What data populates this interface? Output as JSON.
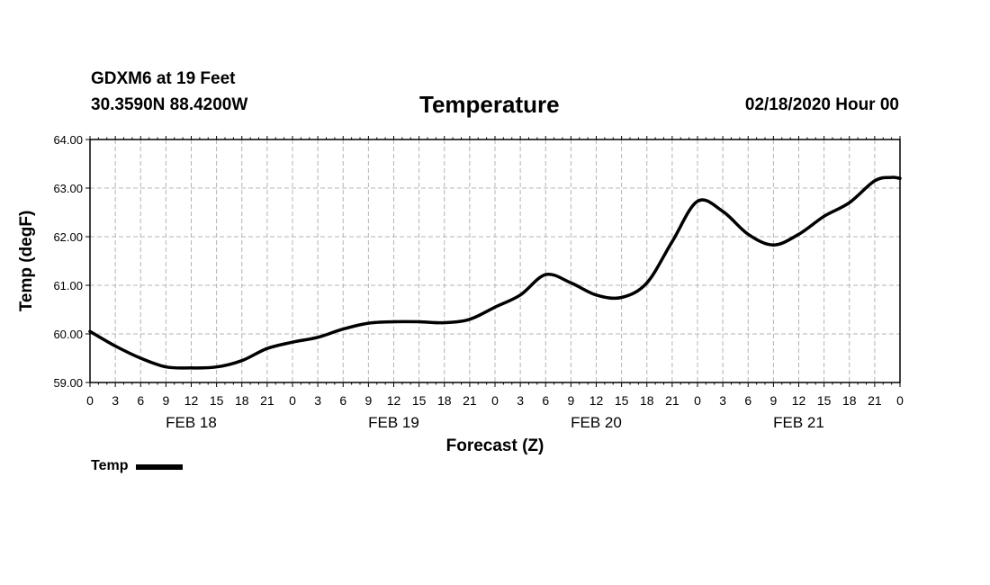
{
  "header": {
    "station": "GDXM6 at 19 Feet",
    "coords": "30.3590N 88.4200W",
    "title": "Temperature",
    "datetime": "02/18/2020 Hour 00"
  },
  "chart_data": {
    "type": "line",
    "title": "Temperature",
    "xlabel": "Forecast (Z)",
    "ylabel": "Temp (degF)",
    "ylim": [
      59.0,
      64.0
    ],
    "yticks": [
      "59.00",
      "60.00",
      "61.00",
      "62.00",
      "63.00",
      "64.00"
    ],
    "xlim": [
      0,
      96
    ],
    "xtick_labels": [
      "0",
      "3",
      "6",
      "9",
      "12",
      "15",
      "18",
      "21",
      "0",
      "3",
      "6",
      "9",
      "12",
      "15",
      "18",
      "21",
      "0",
      "3",
      "6",
      "9",
      "12",
      "15",
      "18",
      "21",
      "0",
      "3",
      "6",
      "9",
      "12",
      "15",
      "18",
      "21",
      "0"
    ],
    "day_labels": [
      {
        "label": "FEB 18",
        "hour": 12
      },
      {
        "label": "FEB 19",
        "hour": 36
      },
      {
        "label": "FEB 20",
        "hour": 60
      },
      {
        "label": "FEB 21",
        "hour": 84
      }
    ],
    "grid": true,
    "legend": "bottom-left",
    "series": [
      {
        "name": "Temp",
        "color": "#000000",
        "x": [
          0,
          3,
          6,
          9,
          12,
          15,
          18,
          21,
          24,
          27,
          30,
          33,
          36,
          39,
          42,
          45,
          48,
          51,
          54,
          57,
          60,
          63,
          66,
          69,
          72,
          75,
          78,
          81,
          84,
          87,
          90,
          93,
          95,
          96
        ],
        "values": [
          60.05,
          59.75,
          59.5,
          59.32,
          59.3,
          59.32,
          59.45,
          59.7,
          59.83,
          59.93,
          60.1,
          60.22,
          60.25,
          60.25,
          60.23,
          60.3,
          60.55,
          60.8,
          61.22,
          61.05,
          60.8,
          60.75,
          61.05,
          61.9,
          62.73,
          62.52,
          62.05,
          61.83,
          62.05,
          62.42,
          62.7,
          63.15,
          63.22,
          63.2
        ]
      }
    ]
  }
}
